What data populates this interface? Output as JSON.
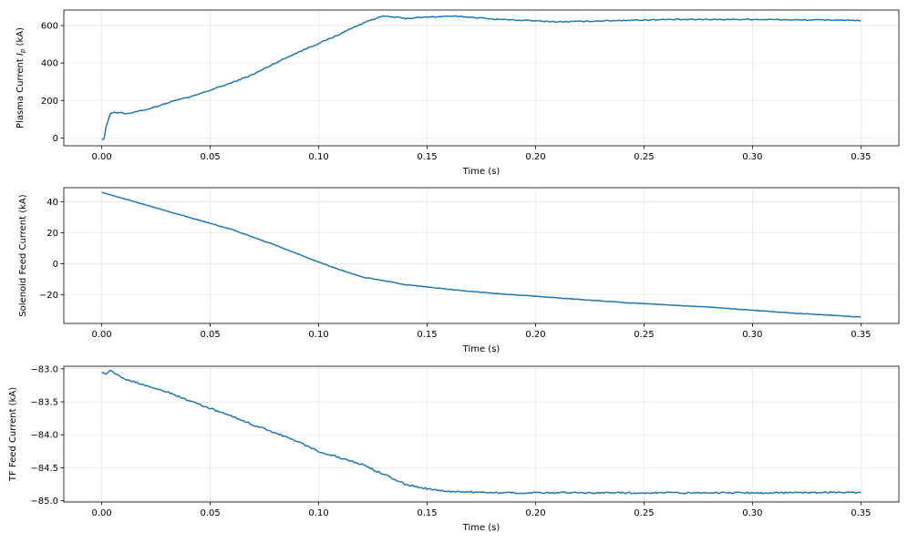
{
  "chart_data": [
    {
      "type": "line",
      "ylabel_main": "Plasma Current ",
      "ylabel_italic": "I",
      "ylabel_sub": "p",
      "ylabel_unit": " (kA)",
      "xlabel": "Time (s)",
      "xlim": [
        -0.0175,
        0.3675
      ],
      "ylim": [
        -42,
        683
      ],
      "xticks": [
        0.0,
        0.05,
        0.1,
        0.15,
        0.2,
        0.25,
        0.3,
        0.35
      ],
      "xtick_labels": [
        "0.00",
        "0.05",
        "0.10",
        "0.15",
        "0.20",
        "0.25",
        "0.30",
        "0.35"
      ],
      "yticks": [
        0,
        200,
        400,
        600
      ],
      "ytick_labels": [
        "0",
        "200",
        "400",
        "600"
      ],
      "grid": true,
      "color": "#1f77b4",
      "series": [
        {
          "x": [
            0.0,
            0.001,
            0.002,
            0.004,
            0.006,
            0.008,
            0.012,
            0.02,
            0.03,
            0.035,
            0.04,
            0.05,
            0.06,
            0.07,
            0.08,
            0.09,
            0.1,
            0.105,
            0.11,
            0.115,
            0.12,
            0.125,
            0.13,
            0.135,
            0.14,
            0.15,
            0.16,
            0.17,
            0.18,
            0.19,
            0.2,
            0.21,
            0.22,
            0.23,
            0.24,
            0.25,
            0.26,
            0.27,
            0.28,
            0.29,
            0.3,
            0.31,
            0.32,
            0.33,
            0.34,
            0.35
          ],
          "y": [
            -10,
            -5,
            60,
            130,
            138,
            135,
            130,
            150,
            185,
            205,
            215,
            255,
            295,
            340,
            400,
            455,
            505,
            530,
            555,
            585,
            610,
            635,
            650,
            645,
            638,
            645,
            650,
            645,
            635,
            630,
            625,
            620,
            622,
            625,
            628,
            630,
            632,
            632,
            633,
            633,
            633,
            632,
            630,
            630,
            630,
            625
          ]
        }
      ]
    },
    {
      "type": "line",
      "ylabel": "Solenoid Feed Current (kA)",
      "xlabel": "Time (s)",
      "xlim": [
        -0.0175,
        0.3675
      ],
      "ylim": [
        -38.5,
        49
      ],
      "xticks": [
        0.0,
        0.05,
        0.1,
        0.15,
        0.2,
        0.25,
        0.3,
        0.35
      ],
      "xtick_labels": [
        "0.00",
        "0.05",
        "0.10",
        "0.15",
        "0.20",
        "0.25",
        "0.30",
        "0.35"
      ],
      "yticks": [
        -20,
        0,
        20,
        40
      ],
      "ytick_labels": [
        "−20",
        "0",
        "20",
        "40"
      ],
      "grid": true,
      "color": "#1f77b4",
      "series": [
        {
          "x": [
            0.0,
            0.005,
            0.01,
            0.02,
            0.03,
            0.04,
            0.05,
            0.06,
            0.07,
            0.08,
            0.09,
            0.1,
            0.11,
            0.12,
            0.13,
            0.14,
            0.15,
            0.16,
            0.17,
            0.18,
            0.2,
            0.22,
            0.24,
            0.26,
            0.28,
            0.3,
            0.32,
            0.34,
            0.35
          ],
          "y": [
            46,
            44,
            42,
            38,
            34,
            30,
            26,
            22,
            17,
            12,
            6.5,
            1,
            -4,
            -8.5,
            -11,
            -13.5,
            -15,
            -16.5,
            -17.8,
            -19,
            -21,
            -23,
            -25,
            -26.5,
            -28,
            -30,
            -32,
            -33.5,
            -34.5
          ]
        }
      ]
    },
    {
      "type": "line",
      "ylabel": "TF Feed Current (kA)",
      "xlabel": "Time (s)",
      "xlim": [
        -0.0175,
        0.3675
      ],
      "ylim": [
        -85.02,
        -82.96
      ],
      "xticks": [
        0.0,
        0.05,
        0.1,
        0.15,
        0.2,
        0.25,
        0.3,
        0.35
      ],
      "xtick_labels": [
        "0.00",
        "0.05",
        "0.10",
        "0.15",
        "0.20",
        "0.25",
        "0.30",
        "0.35"
      ],
      "yticks": [
        -85.0,
        -84.5,
        -84.0,
        -83.5,
        -83.0
      ],
      "ytick_labels": [
        "−85.0",
        "−84.5",
        "−84.0",
        "−83.5",
        "−83.0"
      ],
      "grid": true,
      "color": "#1f77b4",
      "series": [
        {
          "x": [
            0.0,
            0.002,
            0.004,
            0.01,
            0.02,
            0.03,
            0.04,
            0.05,
            0.06,
            0.07,
            0.08,
            0.09,
            0.1,
            0.11,
            0.12,
            0.13,
            0.14,
            0.15,
            0.16,
            0.18,
            0.2,
            0.22,
            0.24,
            0.26,
            0.28,
            0.3,
            0.32,
            0.34,
            0.35
          ],
          "y": [
            -83.05,
            -83.08,
            -83.02,
            -83.15,
            -83.25,
            -83.35,
            -83.48,
            -83.6,
            -83.72,
            -83.85,
            -83.97,
            -84.1,
            -84.25,
            -84.35,
            -84.45,
            -84.6,
            -84.75,
            -84.82,
            -84.86,
            -84.88,
            -84.88,
            -84.88,
            -84.88,
            -84.88,
            -84.88,
            -84.88,
            -84.88,
            -84.87,
            -84.88
          ]
        }
      ]
    }
  ]
}
